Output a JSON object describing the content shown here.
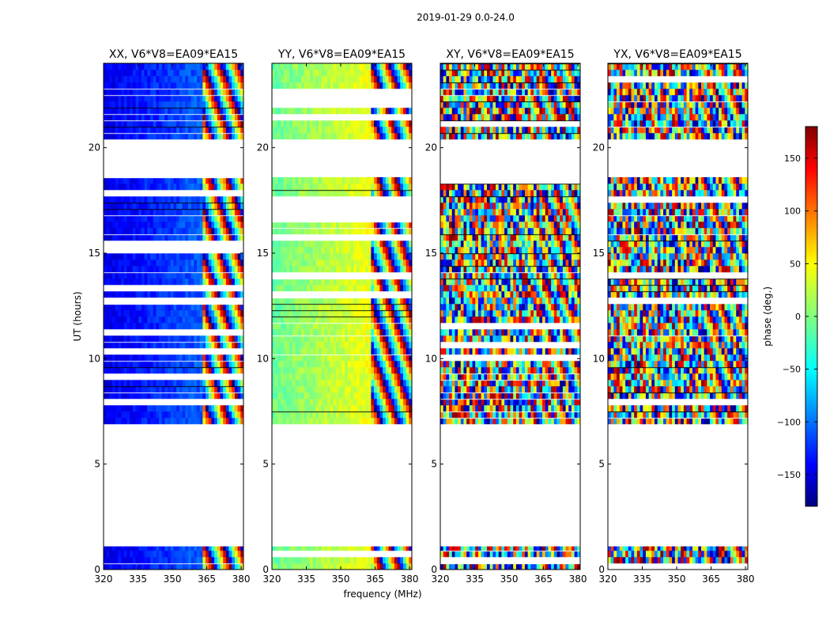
{
  "suptitle": "2019-01-29 0.0-24.0",
  "chart_data": {
    "type": "heatmap",
    "title": "2019-01-29 0.0-24.0",
    "xlabel": "frequency (MHz)",
    "ylabel": "UT (hours)",
    "xlim": [
      320,
      381
    ],
    "ylim": [
      0,
      24
    ],
    "xticks": [
      320,
      335,
      350,
      365,
      380
    ],
    "yticks": [
      0,
      5,
      10,
      15,
      20
    ],
    "colorbar": {
      "label": "phase (deg.)",
      "range": [
        -180,
        180
      ],
      "ticks": [
        -150,
        -100,
        -50,
        0,
        50,
        100,
        150
      ],
      "tick_labels": [
        "−150",
        "−100",
        "−50",
        "0",
        "50",
        "100",
        "150"
      ],
      "colormap": "jet",
      "colors": [
        "#00007f",
        "#0000ff",
        "#00ffff",
        "#7fff7f",
        "#ffff00",
        "#ff0000",
        "#7f0000"
      ]
    },
    "data_coverage_hours": [
      [
        0.0,
        1.1
      ],
      [
        6.9,
        18.6
      ],
      [
        20.4,
        24.0
      ]
    ],
    "panels": [
      {
        "name": "XX",
        "title": "XX, V6*V8=EA09*EA15",
        "pattern": "smooth",
        "phase_center_deg": -120,
        "phase_slope": 0.25
      },
      {
        "name": "YY",
        "title": "YY, V6*V8=EA09*EA15",
        "pattern": "smooth",
        "phase_center_deg": 20,
        "phase_slope": 0.28
      },
      {
        "name": "XY",
        "title": "XY, V6*V8=EA09*EA15",
        "pattern": "noise"
      },
      {
        "name": "YX",
        "title": "YX, V6*V8=EA09*EA15",
        "pattern": "noise"
      }
    ]
  }
}
